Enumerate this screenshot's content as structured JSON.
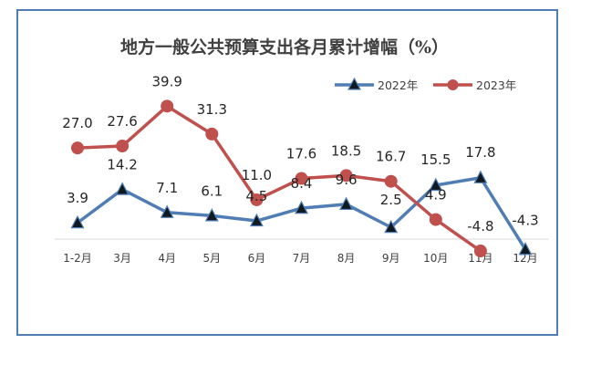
{
  "chart_data": {
    "type": "line",
    "title": "地方一般公共预算支出各月累计增幅（%）",
    "categories": [
      "1-2月",
      "3月",
      "4月",
      "5月",
      "6月",
      "7月",
      "8月",
      "9月",
      "10月",
      "11月",
      "12月"
    ],
    "series": [
      {
        "name": "2022年",
        "color": "#4f7db4",
        "marker": "triangle",
        "values": [
          3.9,
          14.2,
          7.1,
          6.1,
          4.5,
          8.4,
          9.6,
          2.5,
          15.5,
          17.8,
          -4.3
        ]
      },
      {
        "name": "2023年",
        "color": "#c0504d",
        "marker": "circle",
        "values": [
          27.0,
          27.6,
          39.9,
          31.3,
          11.0,
          17.6,
          18.5,
          16.7,
          4.9,
          -4.8,
          null
        ]
      }
    ],
    "data_labels": {
      "2022年": [
        "3.9",
        "14.2",
        "7.1",
        "6.1",
        "4.5",
        "8.4",
        "9.6",
        "2.5",
        "15.5",
        "17.8",
        "-4.3"
      ],
      "2023年": [
        "27.0",
        "27.6",
        "39.9",
        "31.3",
        "11.0",
        "17.6",
        "18.5",
        "16.7",
        "4.9",
        "-4.8",
        ""
      ]
    },
    "legend_position": "top-right",
    "grid": false,
    "axis_color": "#d9d9d9"
  }
}
